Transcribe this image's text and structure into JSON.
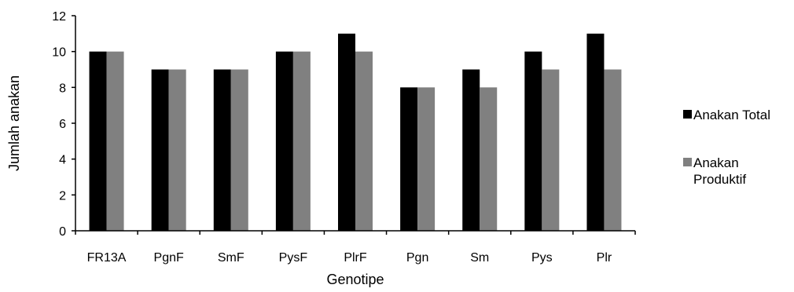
{
  "chart_data": {
    "type": "bar",
    "title": "",
    "xlabel": "Genotipe",
    "ylabel": "Jumlah anakan",
    "ylim": [
      0,
      12
    ],
    "yticks": [
      0,
      2,
      4,
      6,
      8,
      10,
      12
    ],
    "grid": false,
    "legend_position": "right",
    "categories": [
      "FR13A",
      "PgnF",
      "SmF",
      "PysF",
      "PlrF",
      "Pgn",
      "Sm",
      "Pys",
      "Plr"
    ],
    "series": [
      {
        "name": "Anakan Total",
        "color": "#000000",
        "values": [
          10,
          9,
          9,
          10,
          11,
          8,
          9,
          10,
          11
        ]
      },
      {
        "name": "Anakan Produktif",
        "color": "#808080",
        "values": [
          10,
          9,
          9,
          10,
          10,
          8,
          8,
          9,
          9
        ]
      }
    ],
    "legend": {
      "entries": [
        {
          "lines": [
            "Anakan Total"
          ]
        },
        {
          "lines": [
            "Anakan",
            "Produktif"
          ]
        }
      ]
    }
  }
}
